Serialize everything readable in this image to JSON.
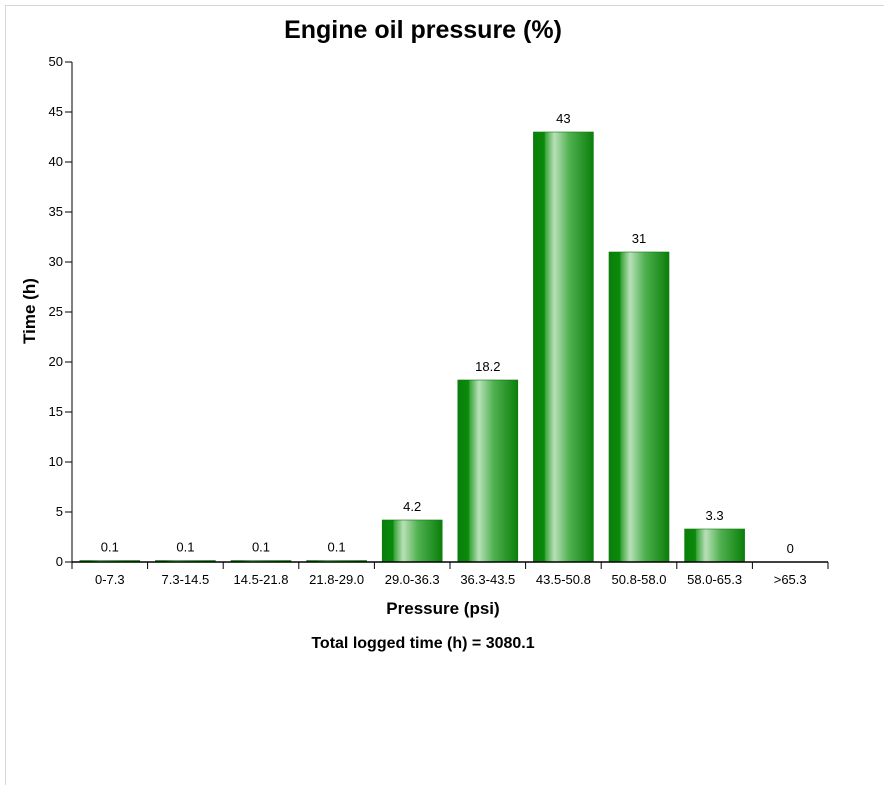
{
  "chart_data": {
    "type": "bar",
    "title": "Engine oil pressure (%)",
    "xlabel": "Pressure (psi)",
    "ylabel": "Time (h)",
    "ylim": [
      0,
      50
    ],
    "yticks": [
      0,
      5,
      10,
      15,
      20,
      25,
      30,
      35,
      40,
      45,
      50
    ],
    "categories": [
      "0-7.3",
      "7.3-14.5",
      "14.5-21.8",
      "21.8-29.0",
      "29.0-36.3",
      "36.3-43.5",
      "43.5-50.8",
      "50.8-58.0",
      "58.0-65.3",
      ">65.3"
    ],
    "values": [
      0.1,
      0.1,
      0.1,
      0.1,
      4.2,
      18.2,
      43,
      31,
      3.3,
      0
    ],
    "value_labels": [
      "0.1",
      "0.1",
      "0.1",
      "0.1",
      "4.2",
      "18.2",
      "43",
      "31",
      "3.3",
      "0"
    ],
    "grid": false,
    "legend": "none",
    "bar_color": "#0a8a0a",
    "footer": "Total logged time (h) = 3080.1"
  }
}
